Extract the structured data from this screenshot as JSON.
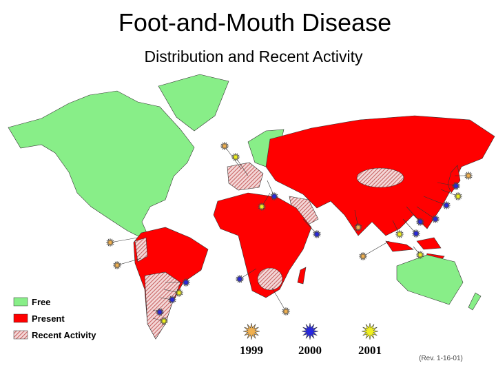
{
  "header": {
    "title": "Foot-and-Mouth Disease",
    "subtitle": "Distribution and Recent Activity"
  },
  "legend": [
    {
      "label": "Free",
      "color": "#88ee88"
    },
    {
      "label": "Present",
      "color": "#ff0000"
    },
    {
      "label": "Recent Activity",
      "color": "#c86464"
    }
  ],
  "years": [
    {
      "label": "1999",
      "color": "#f0b050"
    },
    {
      "label": "2000",
      "color": "#2828e0"
    },
    {
      "label": "2001",
      "color": "#f0f020"
    }
  ],
  "note": "(Rev. 1-16-01)"
}
